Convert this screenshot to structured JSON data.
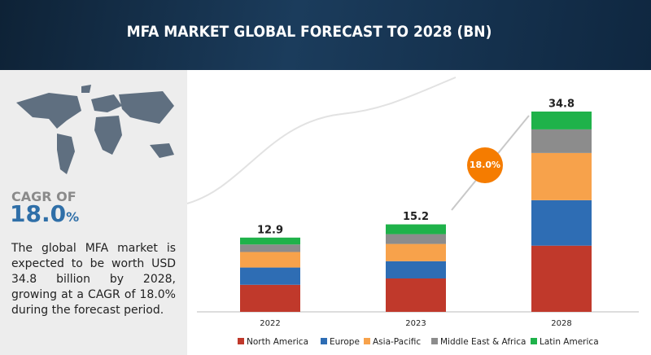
{
  "chart_data": {
    "type": "stacked-bar",
    "title": "MFA MARKET GLOBAL FORECAST TO 2028 (BN)",
    "categories": [
      "2022",
      "2023",
      "2028"
    ],
    "totals": [
      12.9,
      15.2,
      34.8
    ],
    "series": [
      {
        "name": "North America",
        "color": "#c0392b",
        "values": [
          4.7,
          5.8,
          11.5
        ]
      },
      {
        "name": "Europe",
        "color": "#2e6db4",
        "values": [
          3.0,
          3.0,
          7.9
        ]
      },
      {
        "name": "Asia-Pacific",
        "color": "#f7a24b",
        "values": [
          2.7,
          3.0,
          8.2
        ]
      },
      {
        "name": "Middle East & Africa",
        "color": "#8c8c8c",
        "values": [
          1.3,
          1.7,
          4.1
        ]
      },
      {
        "name": "Latin America",
        "color": "#1fb24a",
        "values": [
          1.2,
          1.7,
          3.1
        ]
      }
    ],
    "annotation": "18.0%",
    "cagr": {
      "label": "CAGR OF",
      "value": "18.0",
      "unit": "%"
    },
    "description": "The global MFA market is expected to be worth USD 34.8 billion by 2028, growing at a CAGR of 18.0% during the forecast period."
  }
}
